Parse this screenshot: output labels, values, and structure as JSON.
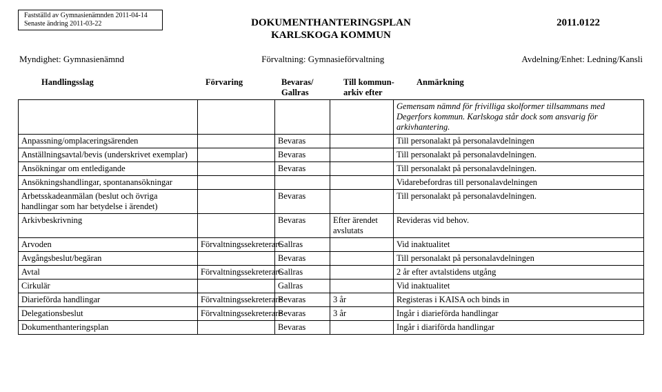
{
  "meta": {
    "line1": "Fastställd av Gymnasienämnden 2011-04-14",
    "line2": "Senaste ändring 2011-03-22"
  },
  "title": "DOKUMENTHANTERINGSPLAN",
  "subtitle": "KARLSKOGA KOMMUN",
  "docnum": "2011.0122",
  "authority": {
    "myndighet_label": "Myndighet: Gymnasienämnd",
    "forvaltning_label": "Förvaltning: Gymnasieförvaltning",
    "avdelning_label": "Avdelning/Enhet: Ledning/Kansli"
  },
  "headers": {
    "handlingsslag": "Handlingsslag",
    "forvaring": "Förvaring",
    "bevaras": "Bevaras/",
    "gallras": "Gallras",
    "kommun1": "Till kommun-",
    "kommun2": "arkiv efter",
    "anmarkning": "Anmärkning"
  },
  "intro_note": "Gemensam nämnd för frivilliga skolformer tillsammans med Degerfors kommun. Karlskoga står dock som ansvarig för arkivhantering.",
  "rows": [
    {
      "slag": "Anpassning/omplaceringsärenden",
      "forvaring": "",
      "bg": "Bevaras",
      "kommun": "",
      "anm": "Till personalakt på personalavdelningen"
    },
    {
      "slag": "Anställningsavtal/bevis (underskrivet exemplar)",
      "forvaring": "",
      "bg": "Bevaras",
      "kommun": "",
      "anm": "Till personalakt på personalavdelningen."
    },
    {
      "slag": "Ansökningar om entledigande",
      "forvaring": "",
      "bg": "Bevaras",
      "kommun": "",
      "anm": "Till personalakt på personalavdelningen."
    },
    {
      "slag": "Ansökningshandlingar, spontanansökningar",
      "forvaring": "",
      "bg": "",
      "kommun": "",
      "anm": "Vidarebefordras till personalavdelningen"
    },
    {
      "slag": "Arbetsskadeanmälan (beslut och övriga handlingar som har betydelse i ärendet)",
      "forvaring": "",
      "bg": "Bevaras",
      "kommun": "",
      "anm": "Till personalakt på personalavdelningen."
    },
    {
      "slag": "Arkivbeskrivning",
      "forvaring": "",
      "bg": "Bevaras",
      "kommun": "Efter ärendet avslutats",
      "anm": "Revideras vid behov."
    },
    {
      "slag": "Arvoden",
      "forvaring": "Förvaltningssekreterare",
      "bg": "Gallras",
      "kommun": "",
      "anm": "Vid inaktualitet"
    },
    {
      "slag": "Avgångsbeslut/begäran",
      "forvaring": "",
      "bg": "Bevaras",
      "kommun": "",
      "anm": "Till personalakt på personalavdelningen"
    },
    {
      "slag": "Avtal",
      "forvaring": "Förvaltningssekreterare",
      "bg": "Gallras",
      "kommun": "",
      "anm": "2 år efter avtalstidens utgång"
    },
    {
      "slag": "Cirkulär",
      "forvaring": "",
      "bg": "Gallras",
      "kommun": "",
      "anm": "Vid inaktualitet"
    },
    {
      "slag": "Diarieförda handlingar",
      "forvaring": "Förvaltningssekreterare",
      "bg": "Bevaras",
      "kommun": "3 år",
      "anm": "Registeras i KAISA och binds in"
    },
    {
      "slag": "Delegationsbeslut",
      "forvaring": "Förvaltningssekreterare",
      "bg": "Bevaras",
      "kommun": "3 år",
      "anm": "Ingår i diarieförda handlingar"
    },
    {
      "slag": "Dokumenthanteringsplan",
      "forvaring": "",
      "bg": "Bevaras",
      "kommun": "",
      "anm": "Ingår i diariförda handlingar"
    }
  ],
  "style": {
    "font_family": "Times New Roman",
    "border_color": "#000000",
    "background": "#ffffff",
    "text_color": "#000000"
  }
}
